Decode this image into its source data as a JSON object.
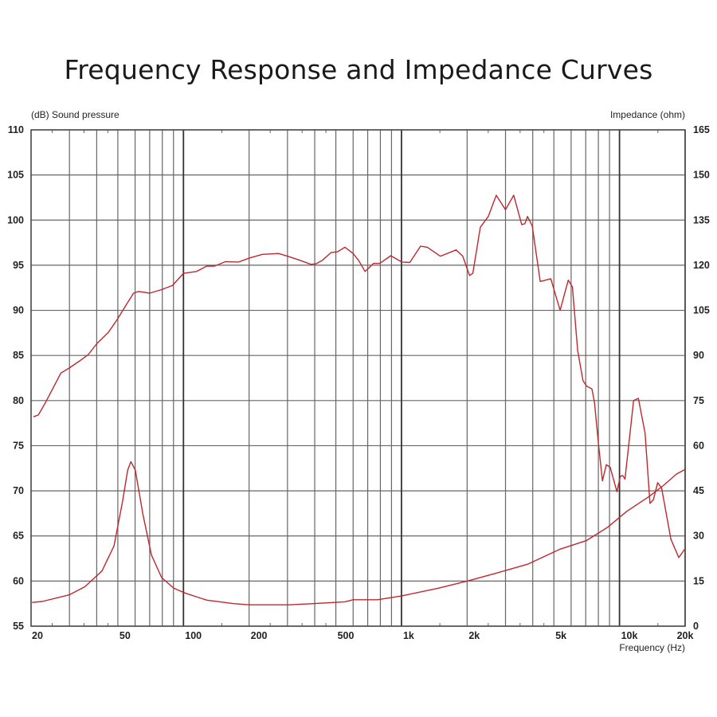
{
  "chart_data": {
    "type": "line",
    "title": "Frequency Response and Impedance Curves",
    "ylabel_left": "(dB)  Sound pressure",
    "ylabel_right": "Impedance  (ohm)",
    "xlabel": "Frequency  (Hz)",
    "x_scale": "log",
    "xlim": [
      20,
      20000
    ],
    "ylim_left": [
      55,
      110
    ],
    "ylim_right": [
      0,
      165
    ],
    "grid": true,
    "x_ticks": [
      {
        "value": 20,
        "label": "20"
      },
      {
        "value": 50,
        "label": "50"
      },
      {
        "value": 100,
        "label": "100"
      },
      {
        "value": 200,
        "label": "200"
      },
      {
        "value": 500,
        "label": "500"
      },
      {
        "value": 1000,
        "label": "1k"
      },
      {
        "value": 2000,
        "label": "2k"
      },
      {
        "value": 5000,
        "label": "5k"
      },
      {
        "value": 10000,
        "label": "10k"
      },
      {
        "value": 20000,
        "label": "20k"
      }
    ],
    "y_ticks_left": [
      "55",
      "60",
      "65",
      "70",
      "75",
      "80",
      "85",
      "90",
      "95",
      "100",
      "105",
      "110"
    ],
    "y_ticks_right": [
      "0",
      "15",
      "30",
      "45",
      "60",
      "75",
      "90",
      "105",
      "120",
      "135",
      "150",
      "165"
    ],
    "line_color": "#c0272d",
    "series": [
      {
        "axis": "left",
        "x": [
          20.5,
          21.6,
          23.2,
          26,
          27.4,
          29.9,
          33.4,
          36.6,
          40,
          45.4,
          49.4,
          53.5,
          59,
          62.3,
          70,
          79.4,
          89,
          100,
          114.7,
          128,
          139,
          156,
          179,
          201,
          230,
          273,
          300,
          342,
          384,
          405,
          434,
          475,
          510,
          550,
          600,
          635,
          681,
          744,
          795,
          893,
          1003,
          1092,
          1222,
          1313,
          1507,
          1782,
          1910,
          2053,
          2125,
          2300,
          2500,
          2720,
          3000,
          3270,
          3560,
          3680,
          3785,
          3980,
          4330,
          4840,
          5050,
          5340,
          5820,
          6080,
          6430,
          6800,
          7070,
          7470,
          7680,
          8010,
          8350,
          8700,
          9060,
          9730,
          10080,
          10330,
          10600,
          11600,
          12200,
          13100,
          13800,
          14300,
          14960,
          15600,
          17200,
          18700,
          20000
        ],
        "y": [
          78.2,
          78.4,
          79.7,
          82.0,
          83.05,
          83.6,
          84.4,
          85.1,
          86.3,
          87.6,
          88.9,
          90.25,
          91.9,
          92.1,
          91.9,
          92.3,
          92.75,
          94.1,
          94.3,
          94.9,
          94.9,
          95.4,
          95.35,
          95.8,
          96.2,
          96.3,
          96.0,
          95.55,
          95.1,
          95.15,
          95.55,
          96.4,
          96.5,
          97.0,
          96.3,
          95.55,
          94.3,
          95.2,
          95.2,
          96.05,
          95.35,
          95.3,
          97.1,
          97.0,
          96.0,
          96.7,
          96.0,
          93.85,
          94.1,
          99.2,
          100.4,
          102.75,
          101.15,
          102.75,
          99.5,
          99.6,
          100.4,
          99.35,
          93.2,
          93.5,
          92.0,
          90.0,
          93.35,
          92.6,
          85.55,
          82.2,
          81.6,
          81.3,
          79.8,
          75.2,
          71.1,
          72.9,
          72.6,
          69.9,
          71.6,
          71.7,
          71.3,
          80.0,
          80.25,
          76.4,
          68.6,
          69.0,
          70.9,
          70.3,
          64.65,
          62.6,
          63.6
        ]
      },
      {
        "axis": "right",
        "x": [
          20.2,
          22.5,
          29.9,
          35.3,
          42.3,
          48,
          52.5,
          55.5,
          57.4,
          60.1,
          65.3,
          71.3,
          79.4,
          90.3,
          102.6,
          128,
          170,
          201,
          306,
          416,
          550,
          600,
          635,
          775,
          994,
          1470,
          2000,
          2720,
          3790,
          5340,
          7070,
          8820,
          10800,
          13650,
          15800,
          18300,
          20000
        ],
        "y": [
          7.9,
          8.2,
          10.4,
          13.1,
          18.35,
          26.7,
          41.3,
          51.9,
          54.7,
          51.9,
          36.9,
          23.65,
          16.15,
          12.6,
          10.9,
          8.65,
          7.5,
          7.1,
          7.1,
          7.6,
          8.1,
          8.8,
          8.8,
          8.8,
          10.0,
          12.6,
          15.0,
          17.65,
          20.6,
          25.6,
          28.5,
          32.9,
          38.2,
          43.1,
          46.6,
          50.6,
          52.1
        ]
      }
    ]
  }
}
